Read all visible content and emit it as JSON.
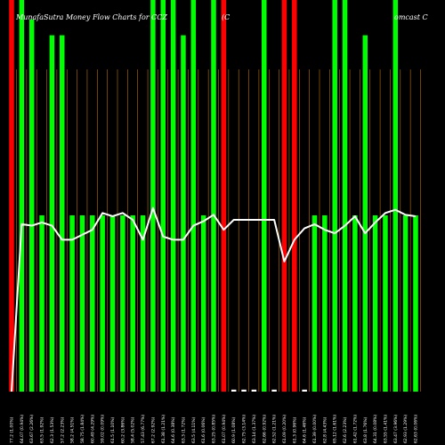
{
  "chart_data": {
    "type": "bar",
    "title_left": "MunafaSutra  Money Flow  Charts for CCZ",
    "title_mid": "(C",
    "title_right": "omcast C",
    "colors": {
      "background": "#000000",
      "up": "#00ff00",
      "down": "#ff0000",
      "neutral": "#ffffff",
      "line": "#ffffff",
      "grid": "#ff9900"
    },
    "ylim": [
      0,
      100
    ],
    "line_ylim": [
      0,
      100
    ],
    "categories": [
      "77.2 (1.00%)",
      "64.07 (0.94%)",
      "63.67 (2.26%)",
      "63.5 (1.92%)",
      "62.3 (1.53%)",
      "57.2 (2.23%)",
      "58.2 (4.51%)",
      "58.75 (1.84%)",
      "60.49 (4.29%)",
      "59.02 (0.09%)",
      "61.5 (1.10%)",
      "60.2 (3.86%)",
      "58.4 (5.02%)",
      "57.43 (6.77%)",
      "67.2 (2.92%)",
      "61.38 (1.21%)",
      "64.6 (0.38%)",
      "63.3 (1.72%)",
      "63.5 (4.11%)",
      "61.6 (0.06%)",
      "63.25 (0.85%)",
      "61.07 (0.94%)",
      "60.9 (1.08%)",
      "62.75 (3.14%)",
      "63.14 (1.37%)",
      "62.66 (0.92%)",
      "62.52 (1.21%)",
      "61.09 (0.20%)",
      "61.3 (0.96%)",
      "64.6 (1.46%)",
      "61.39 (0.00%)",
      "62.8 (4.43%)",
      "65.12 (1.61%)",
      "62.6 (2.23%)",
      "61.42 (1.72%)",
      "63.8 (1.76%)",
      "64.31 (0.08%)",
      "63.55 (1.41%)",
      "63.47 (3.96%)",
      "62.93 (1.29%)",
      "62.63 (0.06%)"
    ],
    "bars": [
      {
        "value": 100,
        "color": "down"
      },
      {
        "value": 100,
        "color": "up"
      },
      {
        "value": 95,
        "color": "up"
      },
      {
        "value": 45,
        "color": "up"
      },
      {
        "value": 91,
        "color": "up"
      },
      {
        "value": 91,
        "color": "up"
      },
      {
        "value": 45,
        "color": "up"
      },
      {
        "value": 45,
        "color": "up"
      },
      {
        "value": 45,
        "color": "up"
      },
      {
        "value": 45,
        "color": "up"
      },
      {
        "value": 45,
        "color": "up"
      },
      {
        "value": 45,
        "color": "up"
      },
      {
        "value": 45,
        "color": "up"
      },
      {
        "value": 45,
        "color": "up"
      },
      {
        "value": 100,
        "color": "up"
      },
      {
        "value": 100,
        "color": "up"
      },
      {
        "value": 100,
        "color": "up"
      },
      {
        "value": 91,
        "color": "up"
      },
      {
        "value": 100,
        "color": "up"
      },
      {
        "value": 45,
        "color": "up"
      },
      {
        "value": 100,
        "color": "up"
      },
      {
        "value": 100,
        "color": "down"
      },
      {
        "value": 0.5,
        "color": "neutral"
      },
      {
        "value": 0.5,
        "color": "neutral"
      },
      {
        "value": 0.5,
        "color": "neutral"
      },
      {
        "value": 100,
        "color": "up"
      },
      {
        "value": 0.5,
        "color": "neutral"
      },
      {
        "value": 100,
        "color": "down"
      },
      {
        "value": 100,
        "color": "down"
      },
      {
        "value": 0.5,
        "color": "neutral"
      },
      {
        "value": 45,
        "color": "up"
      },
      {
        "value": 45,
        "color": "up"
      },
      {
        "value": 100,
        "color": "up"
      },
      {
        "value": 100,
        "color": "up"
      },
      {
        "value": 45,
        "color": "up"
      },
      {
        "value": 91,
        "color": "up"
      },
      {
        "value": 45,
        "color": "up"
      },
      {
        "value": 45,
        "color": "up"
      },
      {
        "value": 100,
        "color": "up"
      },
      {
        "value": 45,
        "color": "up"
      },
      {
        "value": 45,
        "color": "up"
      }
    ],
    "line": [
      0,
      57,
      56.5,
      57.6,
      56.5,
      51.7,
      51.7,
      53.4,
      55.1,
      60.8,
      59.7,
      60.8,
      58.5,
      51.7,
      62.5,
      52.8,
      51.7,
      51.7,
      56.5,
      58,
      60.2,
      55.1,
      58.5,
      58.5,
      58.5,
      58.5,
      58.5,
      44.3,
      51.7,
      55.6,
      57,
      55.1,
      53.9,
      56.5,
      59.7,
      53.9,
      57.6,
      60.8,
      61.9,
      60.2,
      59.7
    ]
  }
}
